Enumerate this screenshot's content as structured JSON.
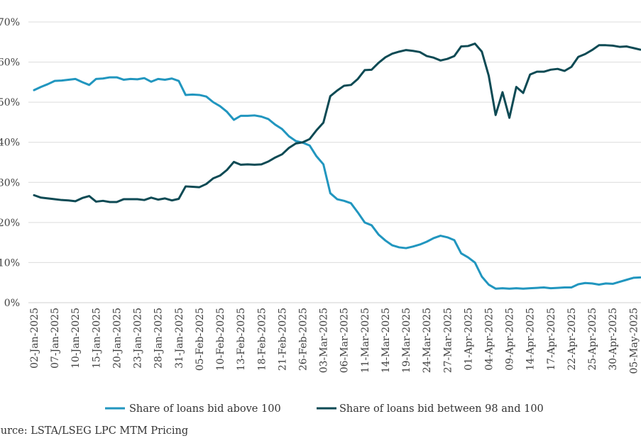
{
  "chart_data": {
    "type": "line",
    "title": "",
    "xlabel": "",
    "ylabel": "",
    "ylim": [
      0,
      70
    ],
    "yticks": [
      "0%",
      "10%",
      "20%",
      "30%",
      "40%",
      "50%",
      "60%",
      "70%"
    ],
    "grid": "horizontal",
    "legend_position": "bottom",
    "x": [
      "02-Jan-2025",
      "03-Jan-2025",
      "06-Jan-2025",
      "07-Jan-2025",
      "08-Jan-2025",
      "09-Jan-2025",
      "10-Jan-2025",
      "13-Jan-2025",
      "14-Jan-2025",
      "15-Jan-2025",
      "16-Jan-2025",
      "17-Jan-2025",
      "20-Jan-2025",
      "21-Jan-2025",
      "22-Jan-2025",
      "23-Jan-2025",
      "24-Jan-2025",
      "27-Jan-2025",
      "28-Jan-2025",
      "29-Jan-2025",
      "30-Jan-2025",
      "31-Jan-2025",
      "03-Feb-2025",
      "04-Feb-2025",
      "05-Feb-2025",
      "06-Feb-2025",
      "07-Feb-2025",
      "10-Feb-2025",
      "11-Feb-2025",
      "12-Feb-2025",
      "13-Feb-2025",
      "14-Feb-2025",
      "17-Feb-2025",
      "18-Feb-2025",
      "19-Feb-2025",
      "20-Feb-2025",
      "21-Feb-2025",
      "24-Feb-2025",
      "25-Feb-2025",
      "26-Feb-2025",
      "27-Feb-2025",
      "28-Feb-2025",
      "03-Mar-2025",
      "04-Mar-2025",
      "05-Mar-2025",
      "06-Mar-2025",
      "07-Mar-2025",
      "10-Mar-2025",
      "11-Mar-2025",
      "12-Mar-2025",
      "13-Mar-2025",
      "14-Mar-2025",
      "17-Mar-2025",
      "18-Mar-2025",
      "19-Mar-2025",
      "20-Mar-2025",
      "21-Mar-2025",
      "24-Mar-2025",
      "25-Mar-2025",
      "26-Mar-2025",
      "27-Mar-2025",
      "28-Mar-2025",
      "31-Mar-2025",
      "01-Apr-2025",
      "02-Apr-2025",
      "03-Apr-2025",
      "04-Apr-2025",
      "07-Apr-2025",
      "08-Apr-2025",
      "09-Apr-2025",
      "10-Apr-2025",
      "11-Apr-2025",
      "14-Apr-2025",
      "15-Apr-2025",
      "16-Apr-2025",
      "17-Apr-2025",
      "18-Apr-2025",
      "21-Apr-2025",
      "22-Apr-2025",
      "23-Apr-2025",
      "24-Apr-2025",
      "25-Apr-2025",
      "28-Apr-2025",
      "29-Apr-2025",
      "30-Apr-2025",
      "01-May-2025",
      "02-May-2025",
      "05-May-2025",
      "06-May-2025"
    ],
    "x_tick_labels": [
      "02-Jan-2025",
      "07-Jan-2025",
      "10-Jan-2025",
      "15-Jan-2025",
      "20-Jan-2025",
      "23-Jan-2025",
      "28-Jan-2025",
      "31-Jan-2025",
      "05-Feb-2025",
      "10-Feb-2025",
      "13-Feb-2025",
      "18-Feb-2025",
      "21-Feb-2025",
      "26-Feb-2025",
      "03-Mar-2025",
      "06-Mar-2025",
      "11-Mar-2025",
      "14-Mar-2025",
      "19-Mar-2025",
      "24-Mar-2025",
      "27-Mar-2025",
      "01-Apr-2025",
      "04-Apr-2025",
      "09-Apr-2025",
      "14-Apr-2025",
      "17-Apr-2025",
      "22-Apr-2025",
      "25-Apr-2025",
      "30-Apr-2025",
      "05-May-2025"
    ],
    "series": [
      {
        "name": "Share of loans bid above 100",
        "color": "#2196bf",
        "values": [
          53.0,
          53.8,
          54.5,
          55.3,
          55.4,
          55.6,
          55.8,
          55.0,
          54.3,
          55.8,
          55.9,
          56.2,
          56.2,
          55.6,
          55.8,
          55.7,
          56.0,
          55.1,
          55.8,
          55.6,
          55.9,
          55.3,
          51.8,
          51.9,
          51.8,
          51.4,
          50.0,
          49.0,
          47.6,
          45.6,
          46.6,
          46.6,
          46.7,
          46.4,
          45.8,
          44.4,
          43.3,
          41.5,
          40.3,
          39.9,
          39.2,
          36.5,
          34.5,
          27.3,
          25.8,
          25.4,
          24.8,
          22.5,
          20.0,
          19.3,
          17.0,
          15.5,
          14.3,
          13.8,
          13.6,
          14.0,
          14.5,
          15.2,
          16.1,
          16.7,
          16.3,
          15.6,
          12.3,
          11.3,
          10.0,
          6.5,
          4.5,
          3.5,
          3.6,
          3.5,
          3.6,
          3.5,
          3.6,
          3.7,
          3.8,
          3.6,
          3.7,
          3.8,
          3.8,
          4.6,
          4.9,
          4.8,
          4.5,
          4.8,
          4.7,
          5.2,
          5.7,
          6.2,
          6.3
        ]
      },
      {
        "name": "Share of loans bid between 98 and 100",
        "color": "#0d4a54",
        "values": [
          26.8,
          26.2,
          26.0,
          25.8,
          25.6,
          25.5,
          25.3,
          26.1,
          26.6,
          25.2,
          25.4,
          25.1,
          25.1,
          25.8,
          25.8,
          25.8,
          25.6,
          26.2,
          25.7,
          26.0,
          25.5,
          25.9,
          29.0,
          28.9,
          28.8,
          29.6,
          31.0,
          31.7,
          33.1,
          35.1,
          34.4,
          34.5,
          34.4,
          34.5,
          35.2,
          36.2,
          37.0,
          38.6,
          39.7,
          40.0,
          40.8,
          43.0,
          44.9,
          51.5,
          52.9,
          54.1,
          54.3,
          55.8,
          58.0,
          58.1,
          59.8,
          61.2,
          62.1,
          62.6,
          63.0,
          62.8,
          62.5,
          61.5,
          61.1,
          60.4,
          60.8,
          61.5,
          63.9,
          64.0,
          64.6,
          62.6,
          56.6,
          46.8,
          52.5,
          46.1,
          53.8,
          52.3,
          56.9,
          57.6,
          57.6,
          58.1,
          58.3,
          57.8,
          58.8,
          61.3,
          62.0,
          63.0,
          64.2,
          64.2,
          64.1,
          63.8,
          63.9,
          63.5,
          63.1
        ]
      }
    ]
  },
  "legend": {
    "series_1": "Share of loans bid above 100",
    "series_2": "Share of loans bid between 98 and 100"
  },
  "source": "ource:  LSTA/LSEG LPC MTM Pricing"
}
